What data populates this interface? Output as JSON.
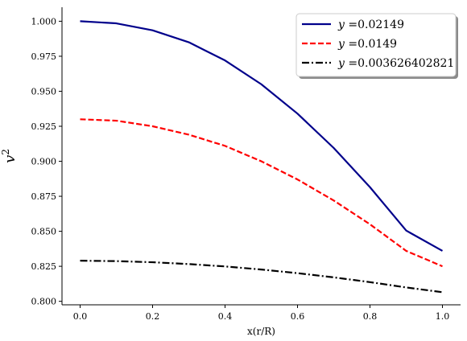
{
  "chart_data": {
    "type": "line",
    "xlabel": "x(r/R)",
    "ylabel": "v",
    "ylabel_sup": "2",
    "xlim": [
      -0.05,
      1.05
    ],
    "ylim": [
      0.7975,
      1.01
    ],
    "xticks": [
      0.0,
      0.2,
      0.4,
      0.6,
      0.8,
      1.0
    ],
    "xtick_labels": [
      "0.0",
      "0.2",
      "0.4",
      "0.6",
      "0.8",
      "1.0"
    ],
    "yticks": [
      0.8,
      0.825,
      0.85,
      0.875,
      0.9,
      0.925,
      0.95,
      0.975,
      1.0
    ],
    "ytick_labels": [
      "0.800",
      "0.825",
      "0.850",
      "0.875",
      "0.900",
      "0.925",
      "0.950",
      "0.975",
      "1.000"
    ],
    "grid": false,
    "legend_position": "top-right",
    "series": [
      {
        "name": "y =0.02149",
        "legend_var": "y",
        "legend_value": "=0.02149",
        "color": "#00008b",
        "dash": "solid",
        "x": [
          0.0,
          0.1,
          0.2,
          0.3,
          0.4,
          0.5,
          0.6,
          0.7,
          0.8,
          0.9,
          1.0
        ],
        "values": [
          1.0,
          0.9985,
          0.9935,
          0.985,
          0.972,
          0.955,
          0.934,
          0.9095,
          0.8815,
          0.8505,
          0.836
        ]
      },
      {
        "name": "y =0.0149",
        "legend_var": "y",
        "legend_value": "=0.0149",
        "color": "#ff0000",
        "dash": "dashed",
        "x": [
          0.0,
          0.1,
          0.2,
          0.3,
          0.4,
          0.5,
          0.6,
          0.7,
          0.8,
          0.9,
          1.0
        ],
        "values": [
          0.93,
          0.929,
          0.925,
          0.919,
          0.911,
          0.9,
          0.887,
          0.872,
          0.855,
          0.836,
          0.825
        ]
      },
      {
        "name": "y =0.003626402821",
        "legend_var": "y",
        "legend_value": "=0.003626402821",
        "color": "#000000",
        "dash": "dashdot",
        "x": [
          0.0,
          0.1,
          0.2,
          0.3,
          0.4,
          0.5,
          0.6,
          0.7,
          0.8,
          0.9,
          1.0
        ],
        "values": [
          0.829,
          0.8287,
          0.8279,
          0.8266,
          0.8249,
          0.8227,
          0.8201,
          0.8171,
          0.8137,
          0.8099,
          0.8065
        ]
      }
    ]
  }
}
